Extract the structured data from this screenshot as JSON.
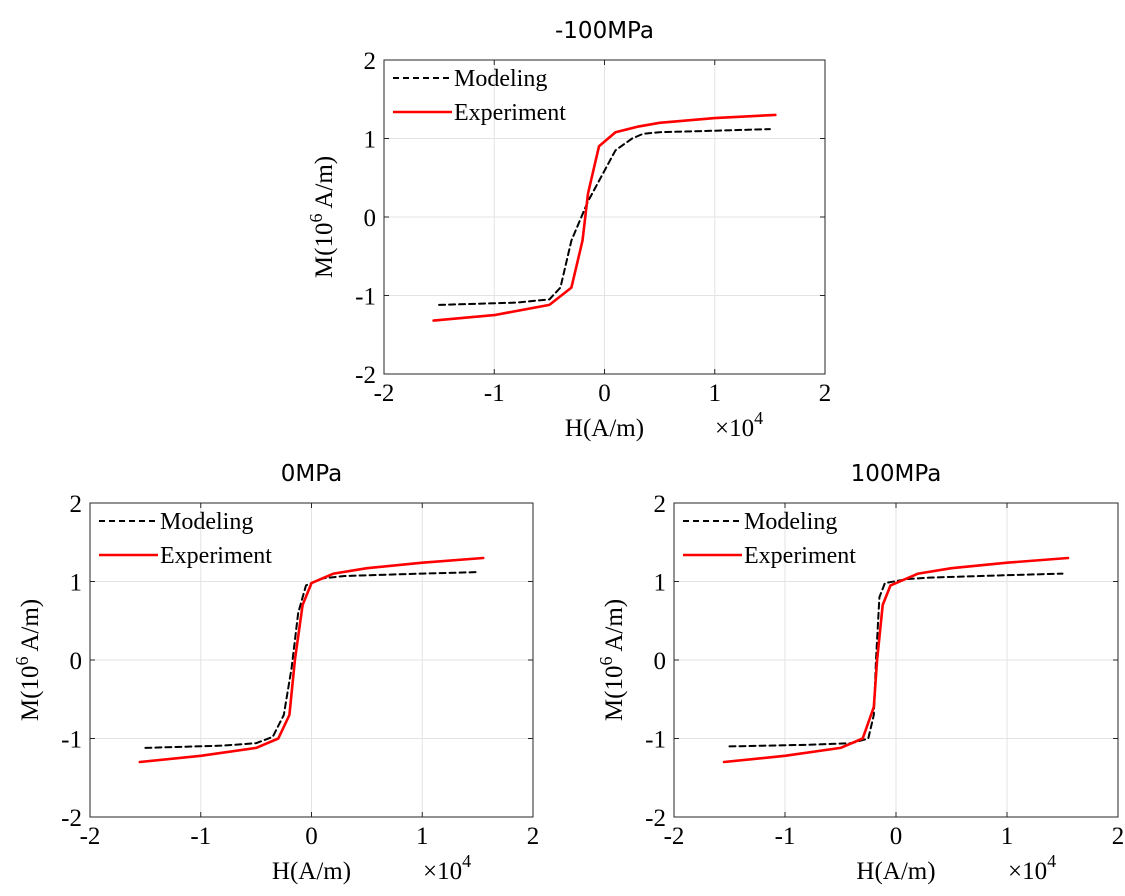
{
  "chart_data": [
    {
      "type": "line",
      "title": "-100MPa",
      "xlabel": "H(A/m)",
      "ylabel": "M(10^6 A/m)",
      "x_multiplier": "×10^4",
      "xlim": [
        -2,
        2
      ],
      "ylim": [
        -2,
        2
      ],
      "xticks": [
        -2,
        -1,
        0,
        1,
        2
      ],
      "yticks": [
        -2,
        -1,
        0,
        1,
        2
      ],
      "grid": true,
      "legend": "top-left",
      "series": [
        {
          "name": "Modeling",
          "color": "#000000",
          "style": "dashed",
          "x": [
            -1.5,
            -0.8,
            -0.5,
            -0.4,
            -0.3,
            -0.15,
            0.1,
            0.25,
            0.35,
            0.5,
            1.0,
            1.5
          ],
          "y": [
            -1.12,
            -1.09,
            -1.05,
            -0.9,
            -0.3,
            0.2,
            0.85,
            1.0,
            1.06,
            1.08,
            1.1,
            1.12
          ]
        },
        {
          "name": "Experiment",
          "color": "#ff0000",
          "style": "solid",
          "x": [
            -1.55,
            -1.0,
            -0.5,
            -0.3,
            -0.2,
            -0.15,
            -0.05,
            0.1,
            0.3,
            0.5,
            1.0,
            1.55
          ],
          "y": [
            -1.32,
            -1.25,
            -1.12,
            -0.9,
            -0.3,
            0.3,
            0.9,
            1.08,
            1.15,
            1.2,
            1.26,
            1.3
          ]
        }
      ]
    },
    {
      "type": "line",
      "title": "0MPa",
      "xlabel": "H(A/m)",
      "ylabel": "M(10^6 A/m)",
      "x_multiplier": "×10^4",
      "xlim": [
        -2,
        2
      ],
      "ylim": [
        -2,
        2
      ],
      "xticks": [
        -2,
        -1,
        0,
        1,
        2
      ],
      "yticks": [
        -2,
        -1,
        0,
        1,
        2
      ],
      "grid": true,
      "legend": "top-left",
      "series": [
        {
          "name": "Modeling",
          "color": "#000000",
          "style": "dashed",
          "x": [
            -1.5,
            -0.8,
            -0.5,
            -0.35,
            -0.25,
            -0.18,
            -0.12,
            -0.05,
            0.1,
            0.3,
            1.0,
            1.5
          ],
          "y": [
            -1.12,
            -1.09,
            -1.06,
            -0.98,
            -0.7,
            -0.1,
            0.6,
            0.95,
            1.04,
            1.07,
            1.1,
            1.12
          ]
        },
        {
          "name": "Experiment",
          "color": "#ff0000",
          "style": "solid",
          "x": [
            -1.55,
            -1.0,
            -0.5,
            -0.3,
            -0.2,
            -0.15,
            -0.08,
            0.0,
            0.2,
            0.5,
            1.0,
            1.55
          ],
          "y": [
            -1.3,
            -1.22,
            -1.12,
            -1.0,
            -0.7,
            0.0,
            0.7,
            0.98,
            1.1,
            1.17,
            1.24,
            1.3
          ]
        }
      ]
    },
    {
      "type": "line",
      "title": "100MPa",
      "xlabel": "H(A/m)",
      "ylabel": "M(10^6 A/m)",
      "x_multiplier": "×10^4",
      "xlim": [
        -2,
        2
      ],
      "ylim": [
        -2,
        2
      ],
      "xticks": [
        -2,
        -1,
        0,
        1,
        2
      ],
      "yticks": [
        -2,
        -1,
        0,
        1,
        2
      ],
      "grid": true,
      "legend": "top-left",
      "series": [
        {
          "name": "Modeling",
          "color": "#000000",
          "style": "dashed",
          "x": [
            -1.5,
            -0.8,
            -0.4,
            -0.25,
            -0.2,
            -0.18,
            -0.15,
            -0.1,
            0.1,
            0.3,
            1.0,
            1.5
          ],
          "y": [
            -1.1,
            -1.08,
            -1.06,
            -1.0,
            -0.7,
            0.0,
            0.8,
            0.98,
            1.03,
            1.05,
            1.08,
            1.1
          ]
        },
        {
          "name": "Experiment",
          "color": "#ff0000",
          "style": "solid",
          "x": [
            -1.55,
            -1.0,
            -0.5,
            -0.3,
            -0.2,
            -0.17,
            -0.12,
            -0.05,
            0.2,
            0.5,
            1.0,
            1.55
          ],
          "y": [
            -1.3,
            -1.22,
            -1.12,
            -1.0,
            -0.6,
            0.0,
            0.7,
            0.95,
            1.1,
            1.17,
            1.24,
            1.3
          ]
        }
      ]
    }
  ]
}
